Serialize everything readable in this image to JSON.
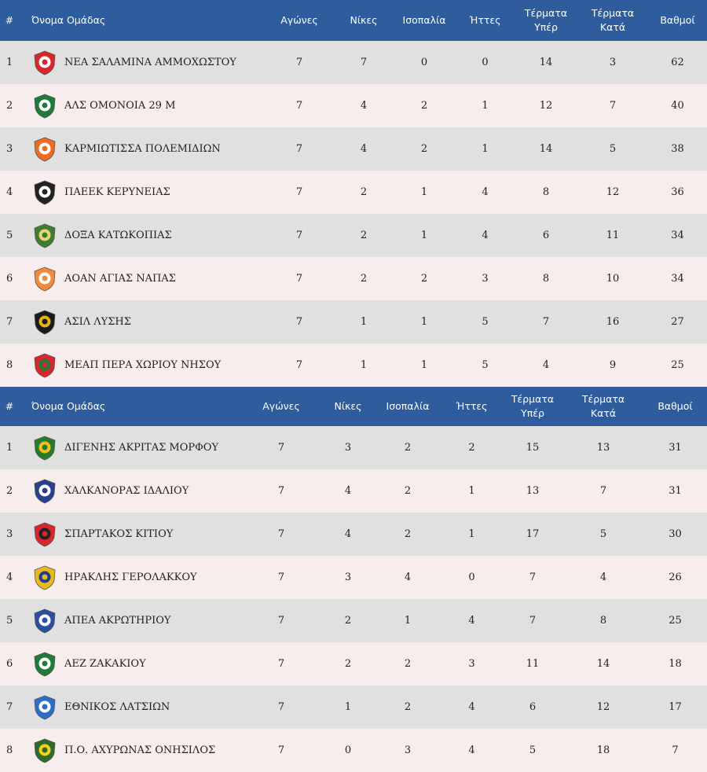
{
  "groups": [
    {
      "headers": {
        "pos": "#",
        "team": "Όνομα Ομάδας",
        "played": "Αγώνες",
        "wins": "Νίκες",
        "draws": "Ισοπαλία",
        "losses": "Ήττες",
        "gf": "Τέρματα Υπέρ",
        "ga": "Τέρματα Κατά",
        "pts": "Βαθμοί"
      },
      "rows": [
        {
          "pos": "1",
          "team": "ΝΕΑ ΣΑΛΑΜΙΝΑ ΑΜΜΟΧΩΣΤΟΥ",
          "played": "7",
          "wins": "7",
          "draws": "0",
          "losses": "0",
          "gf": "14",
          "ga": "3",
          "pts": "62",
          "logo": "nea-salamina-logo",
          "color": "#d9262c",
          "color2": "#ffffff"
        },
        {
          "pos": "2",
          "team": "ΑΛΣ ΟΜΟΝΟΙΑ 29 Μ",
          "played": "7",
          "wins": "4",
          "draws": "2",
          "losses": "1",
          "gf": "12",
          "ga": "7",
          "pts": "40",
          "logo": "omonoia-logo",
          "color": "#1e7b3a",
          "color2": "#ffffff"
        },
        {
          "pos": "3",
          "team": "ΚΑΡΜΙΩΤΙΣΣΑ ΠΟΛΕΜΙΔΙΩΝ",
          "played": "7",
          "wins": "4",
          "draws": "2",
          "losses": "1",
          "gf": "14",
          "ga": "5",
          "pts": "38",
          "logo": "karmiotissa-logo",
          "color": "#f06a1f",
          "color2": "#ffffff"
        },
        {
          "pos": "4",
          "team": "ΠΑΕΕΚ ΚΕΡΥΝΕΙΑΣ",
          "played": "7",
          "wins": "2",
          "draws": "1",
          "losses": "4",
          "gf": "8",
          "ga": "12",
          "pts": "36",
          "logo": "paeek-logo",
          "color": "#222222",
          "color2": "#ffffff"
        },
        {
          "pos": "5",
          "team": "ΔΟΞΑ ΚΑΤΩΚΟΠΙΑΣ",
          "played": "7",
          "wins": "2",
          "draws": "1",
          "losses": "4",
          "gf": "6",
          "ga": "11",
          "pts": "34",
          "logo": "doxa-logo",
          "color": "#3f7d2e",
          "color2": "#e6d57a"
        },
        {
          "pos": "6",
          "team": "ΑΟΑΝ ΑΓΙΑΣ ΝΑΠΑΣ",
          "played": "7",
          "wins": "2",
          "draws": "2",
          "losses": "3",
          "gf": "8",
          "ga": "10",
          "pts": "34",
          "logo": "aoan-logo",
          "color": "#f28a3a",
          "color2": "#ffffff"
        },
        {
          "pos": "7",
          "team": "ΑΣΙΛ ΛΥΣΗΣ",
          "played": "7",
          "wins": "1",
          "draws": "1",
          "losses": "5",
          "gf": "7",
          "ga": "16",
          "pts": "27",
          "logo": "asil-logo",
          "color": "#1a1a1a",
          "color2": "#e3b51c"
        },
        {
          "pos": "8",
          "team": "ΜΕΑΠ ΠΕΡΑ ΧΩΡΙΟΥ ΝΗΣΟΥ",
          "played": "7",
          "wins": "1",
          "draws": "1",
          "losses": "5",
          "gf": "4",
          "ga": "9",
          "pts": "25",
          "logo": "meap-logo",
          "color": "#d9262c",
          "color2": "#1d7a3a"
        }
      ]
    },
    {
      "headers": {
        "pos": "#",
        "team": "Όνομα Ομάδας",
        "played": "Αγώνες",
        "wins": "Νίκες",
        "draws": "Ισοπαλία",
        "losses": "Ήττες",
        "gf": "Τέρματα Υπέρ",
        "ga": "Τέρματα Κατά",
        "pts": "Βαθμοί"
      },
      "rows": [
        {
          "pos": "1",
          "team": "ΔΙΓΕΝΗΣ ΑΚΡΙΤΑΣ ΜΟΡΦΟΥ",
          "played": "7",
          "wins": "3",
          "draws": "2",
          "losses": "2",
          "gf": "15",
          "ga": "13",
          "pts": "31",
          "logo": "digenis-logo",
          "color": "#2a7a2e",
          "color2": "#f2c21b"
        },
        {
          "pos": "2",
          "team": "ΧΑΛΚΑΝΟΡΑΣ ΙΔΑΛΙΟΥ",
          "played": "7",
          "wins": "4",
          "draws": "2",
          "losses": "1",
          "gf": "13",
          "ga": "7",
          "pts": "31",
          "logo": "chalkanoras-logo",
          "color": "#2b3f8f",
          "color2": "#ffffff"
        },
        {
          "pos": "3",
          "team": "ΣΠΑΡΤΑΚΟΣ ΚΙΤΙΟΥ",
          "played": "7",
          "wins": "4",
          "draws": "2",
          "losses": "1",
          "gf": "17",
          "ga": "5",
          "pts": "30",
          "logo": "spartakos-logo",
          "color": "#d9262c",
          "color2": "#222222"
        },
        {
          "pos": "4",
          "team": "ΗΡΑΚΛΗΣ ΓΕΡΟΛΑΚΚΟΥ",
          "played": "7",
          "wins": "3",
          "draws": "4",
          "losses": "0",
          "gf": "7",
          "ga": "4",
          "pts": "26",
          "logo": "iraklis-logo",
          "color": "#e8b81c",
          "color2": "#1f3f8f"
        },
        {
          "pos": "5",
          "team": "ΑΠΕΑ ΑΚΡΩΤΗΡΙΟΥ",
          "played": "7",
          "wins": "2",
          "draws": "1",
          "losses": "4",
          "gf": "7",
          "ga": "8",
          "pts": "25",
          "logo": "apea-logo",
          "color": "#2b4fa0",
          "color2": "#ffffff"
        },
        {
          "pos": "6",
          "team": "ΑΕΖ ΖΑΚΑΚΙΟΥ",
          "played": "7",
          "wins": "2",
          "draws": "2",
          "losses": "3",
          "gf": "11",
          "ga": "14",
          "pts": "18",
          "logo": "aez-logo",
          "color": "#1e7b3a",
          "color2": "#ffffff"
        },
        {
          "pos": "7",
          "team": "ΕΘΝΙΚΟΣ ΛΑΤΣΙΩΝ",
          "played": "7",
          "wins": "1",
          "draws": "2",
          "losses": "4",
          "gf": "6",
          "ga": "12",
          "pts": "17",
          "logo": "ethnikos-logo",
          "color": "#2b6fc9",
          "color2": "#ffffff"
        },
        {
          "pos": "8",
          "team": "Π.Ο. ΑΧΥΡΩΝΑΣ ΟΝΗΣΙΛΟΣ",
          "played": "7",
          "wins": "0",
          "draws": "3",
          "losses": "4",
          "gf": "5",
          "ga": "18",
          "pts": "7",
          "logo": "achyronas-logo",
          "color": "#2e6b2a",
          "color2": "#f2d21b"
        }
      ]
    }
  ]
}
